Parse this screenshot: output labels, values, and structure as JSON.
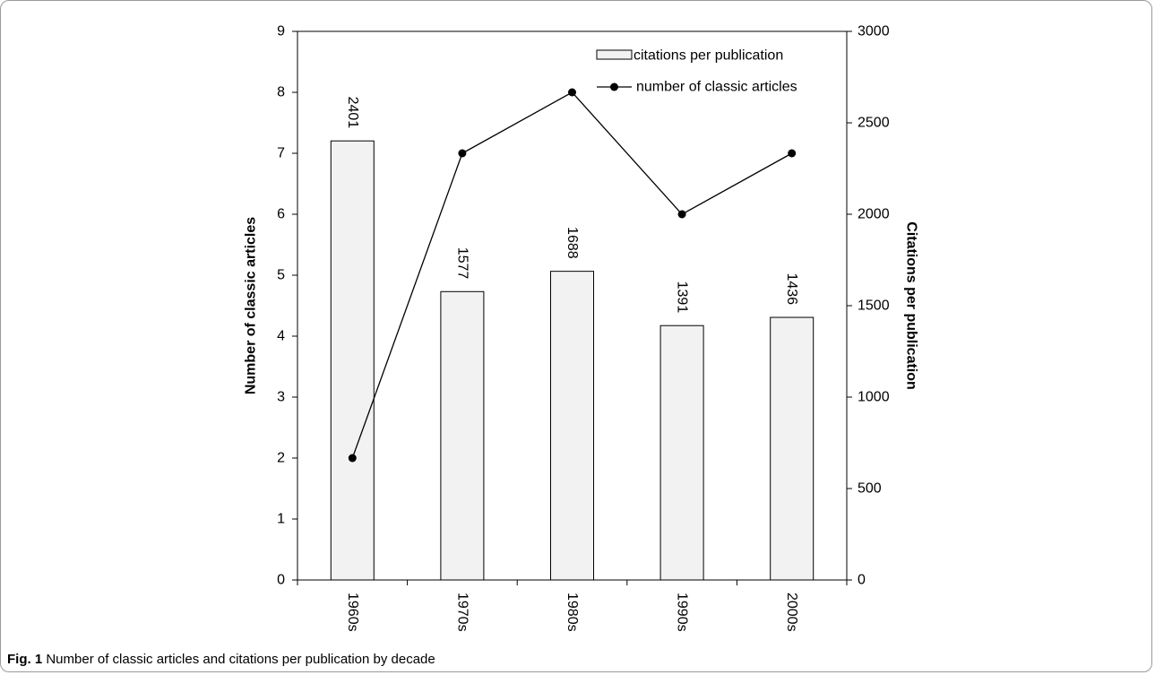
{
  "caption": {
    "label": "Fig. 1",
    "text": "Number of classic articles and citations per publication by decade"
  },
  "chart_data": {
    "type": "bar",
    "categories": [
      "1960s",
      "1970s",
      "1980s",
      "1990s",
      "2000s"
    ],
    "series": [
      {
        "name": "citations per publication",
        "type": "bar",
        "axis": "right",
        "values": [
          2401,
          1577,
          1688,
          1391,
          1436
        ]
      },
      {
        "name": "number of classic articles",
        "type": "line",
        "axis": "left",
        "values": [
          2,
          7,
          8,
          6,
          7
        ]
      }
    ],
    "data_labels": [
      "2401",
      "1577",
      "1688",
      "1391",
      "1436"
    ],
    "ylabel_left": "Number of classic articles",
    "ylabel_right": "Citations per publication",
    "ylim_left": [
      0,
      9
    ],
    "ylim_right": [
      0,
      3000
    ],
    "yticks_left": [
      0,
      1,
      2,
      3,
      4,
      5,
      6,
      7,
      8,
      9
    ],
    "yticks_right": [
      0,
      500,
      1000,
      1500,
      2000,
      2500,
      3000
    ],
    "legend_position": "top-right",
    "grid": false,
    "colors": {
      "bar_fill": "#f2f2f2",
      "bar_stroke": "#000000",
      "line": "#000000"
    }
  }
}
